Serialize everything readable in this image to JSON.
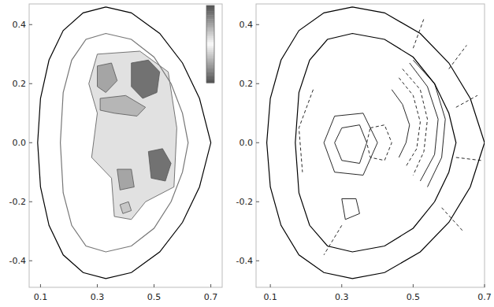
{
  "chart_data": [
    {
      "type": "filled_contour",
      "xlim": [
        0.06,
        0.74
      ],
      "ylim": [
        -0.49,
        0.47
      ],
      "xticks": [
        0.1,
        0.3,
        0.5,
        0.7
      ],
      "yticks": [
        0.4,
        0.2,
        {
          "value": 0,
          "label": "0.0"
        },
        -0.2,
        -0.4
      ],
      "colorbar_range": [
        -1,
        1
      ],
      "boundaries": [
        {
          "x": [
            0.33,
            0.42,
            0.52,
            0.6,
            0.66,
            0.7,
            0.66,
            0.6,
            0.52,
            0.42,
            0.33,
            0.25,
            0.18,
            0.13,
            0.1,
            0.09,
            0.1,
            0.13,
            0.18,
            0.25,
            0.33
          ],
          "y": [
            0.46,
            0.44,
            0.37,
            0.27,
            0.15,
            0.0,
            -0.15,
            -0.27,
            -0.37,
            -0.44,
            -0.46,
            -0.44,
            -0.38,
            -0.28,
            -0.15,
            0.0,
            0.15,
            0.28,
            0.38,
            0.44,
            0.46
          ],
          "color": "#000000"
        },
        {
          "x": [
            0.33,
            0.42,
            0.5,
            0.56,
            0.6,
            0.62,
            0.6,
            0.56,
            0.5,
            0.42,
            0.33,
            0.26,
            0.21,
            0.18,
            0.17,
            0.18,
            0.21,
            0.26,
            0.33
          ],
          "y": [
            0.37,
            0.35,
            0.29,
            0.2,
            0.1,
            0.0,
            -0.1,
            -0.2,
            -0.29,
            -0.35,
            -0.37,
            -0.35,
            -0.28,
            -0.17,
            0.0,
            0.17,
            0.28,
            0.35,
            0.37
          ],
          "color": "#777777"
        }
      ],
      "regions": [
        {
          "value": 0.15,
          "x": [
            0.3,
            0.45,
            0.55,
            0.58,
            0.57,
            0.47,
            0.42,
            0.36,
            0.35,
            0.28,
            0.3,
            0.27
          ],
          "y": [
            0.3,
            0.31,
            0.24,
            0.05,
            -0.15,
            -0.2,
            -0.26,
            -0.25,
            -0.12,
            -0.05,
            0.1,
            0.2
          ]
        },
        {
          "value": 0.8,
          "x": [
            0.42,
            0.48,
            0.52,
            0.51,
            0.46,
            0.42
          ],
          "y": [
            0.27,
            0.28,
            0.24,
            0.17,
            0.15,
            0.19
          ]
        },
        {
          "value": 0.5,
          "x": [
            0.3,
            0.35,
            0.37,
            0.33,
            0.3
          ],
          "y": [
            0.26,
            0.27,
            0.21,
            0.17,
            0.19
          ]
        },
        {
          "value": 0.4,
          "x": [
            0.31,
            0.4,
            0.47,
            0.44,
            0.36,
            0.31
          ],
          "y": [
            0.15,
            0.16,
            0.12,
            0.09,
            0.1,
            0.11
          ]
        },
        {
          "value": -0.8,
          "x": [
            0.48,
            0.53,
            0.56,
            0.54,
            0.49
          ],
          "y": [
            -0.03,
            -0.02,
            -0.07,
            -0.13,
            -0.12
          ]
        },
        {
          "value": -0.5,
          "x": [
            0.37,
            0.42,
            0.43,
            0.38
          ],
          "y": [
            -0.09,
            -0.09,
            -0.15,
            -0.16
          ]
        },
        {
          "value": -0.3,
          "x": [
            0.38,
            0.41,
            0.42,
            0.39
          ],
          "y": [
            -0.21,
            -0.2,
            -0.23,
            -0.24
          ]
        }
      ]
    },
    {
      "type": "contour",
      "xlim": [
        0.06,
        0.7
      ],
      "ylim": [
        -0.49,
        0.47
      ],
      "xticks": [
        0.1,
        0.3,
        0.5,
        0.7
      ],
      "yticks": [
        0.4,
        0.2,
        {
          "value": 0,
          "label": "0.0"
        },
        -0.2,
        -0.4
      ],
      "boundaries": [
        {
          "x": [
            0.33,
            0.42,
            0.52,
            0.6,
            0.66,
            0.7,
            0.66,
            0.6,
            0.52,
            0.42,
            0.33,
            0.25,
            0.18,
            0.13,
            0.1,
            0.09,
            0.1,
            0.13,
            0.18,
            0.25,
            0.33
          ],
          "y": [
            0.46,
            0.44,
            0.37,
            0.27,
            0.15,
            0.0,
            -0.15,
            -0.27,
            -0.37,
            -0.44,
            -0.46,
            -0.44,
            -0.38,
            -0.28,
            -0.15,
            0.0,
            0.15,
            0.28,
            0.38,
            0.44,
            0.46
          ],
          "color": "#000000"
        },
        {
          "x": [
            0.33,
            0.42,
            0.5,
            0.56,
            0.6,
            0.62,
            0.6,
            0.56,
            0.5,
            0.42,
            0.33,
            0.26,
            0.21,
            0.18,
            0.17,
            0.18,
            0.21,
            0.26,
            0.33
          ],
          "y": [
            0.37,
            0.35,
            0.29,
            0.2,
            0.1,
            0.0,
            -0.1,
            -0.2,
            -0.29,
            -0.35,
            -0.37,
            -0.35,
            -0.28,
            -0.17,
            0.0,
            0.17,
            0.28,
            0.35,
            0.37
          ],
          "color": "#000000"
        }
      ],
      "lines": [
        {
          "line_style": "solid",
          "x": [
            0.5,
            0.56,
            0.59,
            0.58,
            0.54
          ],
          "y": [
            0.28,
            0.2,
            0.08,
            -0.05,
            -0.15
          ]
        },
        {
          "line_style": "solid",
          "x": [
            0.49,
            0.54,
            0.57,
            0.56,
            0.52
          ],
          "y": [
            0.27,
            0.19,
            0.08,
            -0.04,
            -0.13
          ]
        },
        {
          "line_style": "dashed",
          "x": [
            0.47,
            0.52,
            0.54,
            0.53,
            0.5
          ],
          "y": [
            0.25,
            0.18,
            0.08,
            -0.03,
            -0.11
          ]
        },
        {
          "line_style": "dashed",
          "x": [
            0.46,
            0.5,
            0.52,
            0.51,
            0.48
          ],
          "y": [
            0.22,
            0.16,
            0.07,
            -0.02,
            -0.08
          ]
        },
        {
          "line_style": "solid",
          "x": [
            0.44,
            0.47,
            0.49,
            0.48,
            0.46
          ],
          "y": [
            0.18,
            0.13,
            0.06,
            0.0,
            -0.05
          ]
        },
        {
          "line_style": "solid",
          "x": [
            0.3,
            0.35,
            0.37,
            0.35,
            0.3,
            0.28,
            0.3
          ],
          "y": [
            0.05,
            0.06,
            0.0,
            -0.07,
            -0.06,
            0.0,
            0.05
          ]
        },
        {
          "line_style": "solid",
          "x": [
            0.28,
            0.36,
            0.4,
            0.36,
            0.28,
            0.25,
            0.28
          ],
          "y": [
            0.09,
            0.1,
            0.0,
            -0.11,
            -0.1,
            0.0,
            0.09
          ]
        },
        {
          "line_style": "dashed",
          "x": [
            0.38,
            0.42,
            0.44,
            0.42,
            0.38,
            0.37,
            0.38
          ],
          "y": [
            0.05,
            0.06,
            0.0,
            -0.06,
            -0.05,
            0.0,
            0.05
          ]
        },
        {
          "line_style": "solid",
          "x": [
            0.3,
            0.34,
            0.35,
            0.31,
            0.3
          ],
          "y": [
            -0.19,
            -0.19,
            -0.24,
            -0.26,
            -0.19
          ]
        },
        {
          "line_style": "dashed",
          "x": [
            0.6,
            0.65
          ],
          "y": [
            0.25,
            0.33
          ]
        },
        {
          "line_style": "dashed",
          "x": [
            0.62,
            0.68
          ],
          "y": [
            0.12,
            0.16
          ]
        },
        {
          "line_style": "dashed",
          "x": [
            0.62,
            0.69
          ],
          "y": [
            -0.05,
            -0.06
          ]
        },
        {
          "line_style": "dashed",
          "x": [
            0.58,
            0.64
          ],
          "y": [
            -0.22,
            -0.3
          ]
        },
        {
          "line_style": "dashed",
          "x": [
            0.5,
            0.53
          ],
          "y": [
            0.32,
            0.42
          ]
        },
        {
          "line_style": "dashed",
          "x": [
            0.22,
            0.18,
            0.19
          ],
          "y": [
            0.18,
            0.05,
            -0.1
          ]
        },
        {
          "line_style": "dashed",
          "x": [
            0.3,
            0.25
          ],
          "y": [
            -0.28,
            -0.38
          ]
        }
      ]
    }
  ]
}
